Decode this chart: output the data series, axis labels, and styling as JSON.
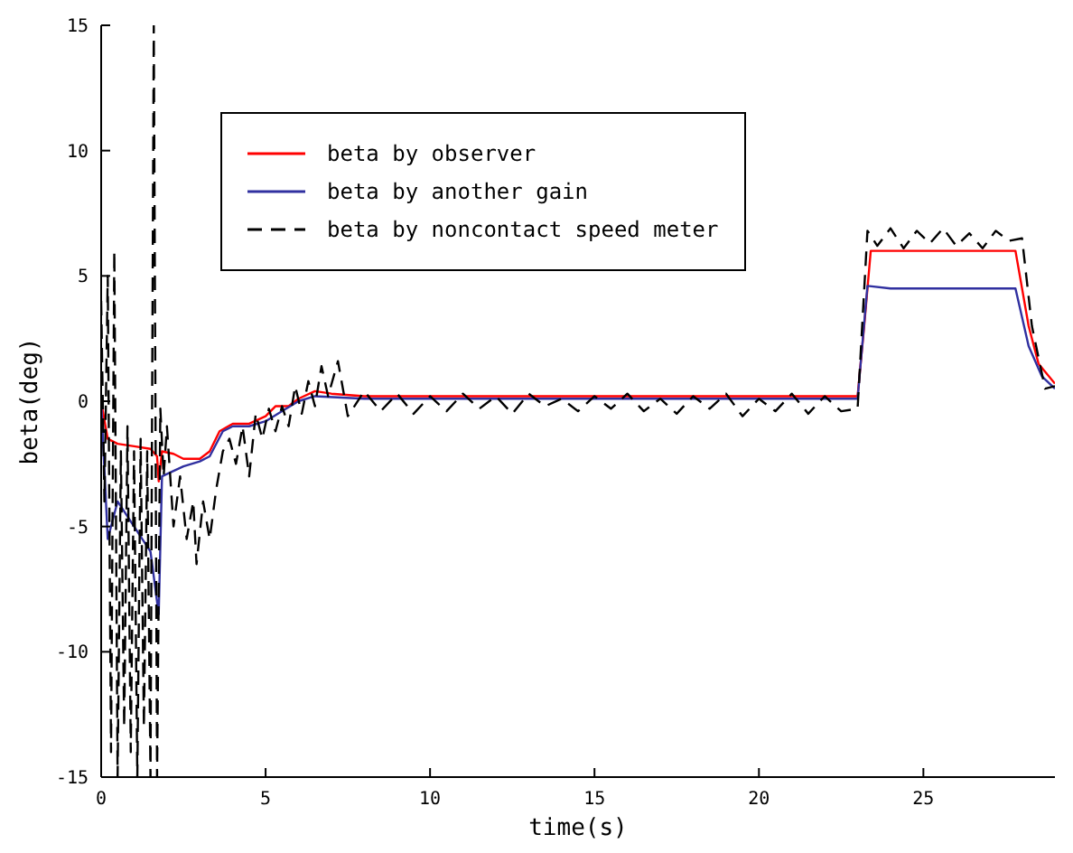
{
  "chart_data": {
    "type": "line",
    "xlabel": "time(s)",
    "ylabel": "beta(deg)",
    "xlim": [
      0,
      29
    ],
    "ylim": [
      -15,
      15
    ],
    "xticks": [
      0,
      5,
      10,
      15,
      20,
      25
    ],
    "yticks": [
      -15,
      -10,
      -5,
      0,
      5,
      10,
      15
    ],
    "grid": false,
    "legend": "top left",
    "marker": "none",
    "series": [
      {
        "name": "beta by observer",
        "color": "#ff0000",
        "line_style": "solid",
        "x": [
          0,
          0.2,
          0.5,
          1.0,
          1.5,
          1.7,
          1.75,
          1.85,
          2.2,
          2.5,
          3.0,
          3.3,
          3.6,
          4.0,
          4.5,
          5.0,
          5.3,
          5.7,
          6.0,
          6.5,
          7,
          8,
          10,
          12,
          14,
          16,
          18,
          20,
          22,
          23,
          23.2,
          23.4,
          24,
          25,
          26,
          27,
          27.8,
          28.2,
          28.5,
          29
        ],
        "values": [
          0,
          -1.5,
          -1.7,
          -1.8,
          -1.9,
          -2.2,
          -3.2,
          -2.0,
          -2.1,
          -2.3,
          -2.3,
          -2.0,
          -1.2,
          -0.9,
          -0.9,
          -0.6,
          -0.2,
          -0.2,
          0.1,
          0.4,
          0.3,
          0.2,
          0.2,
          0.2,
          0.2,
          0.2,
          0.2,
          0.2,
          0.2,
          0.2,
          3,
          6,
          6,
          6,
          6,
          6,
          6,
          3,
          1.5,
          0.7
        ]
      },
      {
        "name": "beta by another gain",
        "color": "#3030a0",
        "line_style": "solid",
        "x": [
          0,
          0.2,
          0.5,
          1.0,
          1.5,
          1.75,
          1.85,
          2.5,
          3.0,
          3.3,
          3.7,
          4.0,
          4.5,
          5.0,
          5.5,
          6.0,
          6.5,
          8,
          10,
          12,
          14,
          16,
          18,
          20,
          22,
          23,
          23.3,
          24,
          25,
          26,
          27,
          27.8,
          28.2,
          28.6,
          29
        ],
        "values": [
          0,
          -5.5,
          -4,
          -5,
          -6,
          -8.5,
          -3,
          -2.6,
          -2.4,
          -2.2,
          -1.2,
          -1.0,
          -1.0,
          -0.8,
          -0.4,
          0,
          0.2,
          0.1,
          0.1,
          0.1,
          0.1,
          0.1,
          0.1,
          0.1,
          0.1,
          0.1,
          4.6,
          4.5,
          4.5,
          4.5,
          4.5,
          4.5,
          2.2,
          1.0,
          0.5
        ]
      },
      {
        "name": "beta by noncontact speed meter",
        "color": "#000000",
        "line_style": "dashed",
        "x": [
          0,
          0.1,
          0.2,
          0.3,
          0.4,
          0.5,
          0.6,
          0.7,
          0.8,
          0.9,
          1.0,
          1.1,
          1.2,
          1.3,
          1.4,
          1.5,
          1.6,
          1.7,
          1.8,
          1.9,
          2.0,
          2.2,
          2.4,
          2.6,
          2.8,
          2.9,
          3.1,
          3.3,
          3.5,
          3.7,
          3.9,
          4.1,
          4.3,
          4.5,
          4.7,
          4.9,
          5.1,
          5.3,
          5.5,
          5.7,
          5.9,
          6.1,
          6.3,
          6.5,
          6.7,
          6.9,
          7.2,
          7.5,
          8,
          8.5,
          9,
          9.5,
          10,
          10.5,
          11,
          11.5,
          12,
          12.5,
          13,
          13.5,
          14,
          14.5,
          15,
          15.5,
          16,
          16.5,
          17,
          17.5,
          18,
          18.5,
          19,
          19.5,
          20,
          20.5,
          21,
          21.5,
          22,
          22.5,
          23,
          23.3,
          23.6,
          24,
          24.4,
          24.8,
          25.2,
          25.6,
          26,
          26.4,
          26.8,
          27.2,
          27.6,
          28,
          28.3,
          28.7,
          29
        ],
        "values": [
          4,
          -4,
          5,
          -14,
          6,
          -15,
          -2,
          -13,
          -1,
          -14,
          -2,
          -15,
          -1.5,
          -13,
          -2,
          -15,
          15,
          -15,
          -0.3,
          -3,
          -1,
          -5,
          -3,
          -5.5,
          -4,
          -6.5,
          -4,
          -5.5,
          -3.5,
          -2,
          -1.5,
          -2.5,
          -1,
          -3,
          -0.5,
          -1.5,
          -0.3,
          -1.2,
          -0.2,
          -1,
          0.6,
          -0.5,
          0.8,
          -0.2,
          1.4,
          0.2,
          1.6,
          -0.6,
          0.4,
          -0.4,
          0.3,
          -0.5,
          0.2,
          -0.4,
          0.3,
          -0.3,
          0.2,
          -0.5,
          0.3,
          -0.2,
          0.1,
          -0.4,
          0.2,
          -0.3,
          0.3,
          -0.4,
          0.1,
          -0.5,
          0.2,
          -0.3,
          0.3,
          -0.6,
          0.1,
          -0.4,
          0.3,
          -0.5,
          0.2,
          -0.4,
          -0.3,
          6.8,
          6.2,
          6.9,
          6.1,
          6.8,
          6.3,
          6.9,
          6.2,
          6.7,
          6.1,
          6.8,
          6.4,
          6.5,
          3,
          0.5,
          0.6
        ]
      }
    ]
  }
}
